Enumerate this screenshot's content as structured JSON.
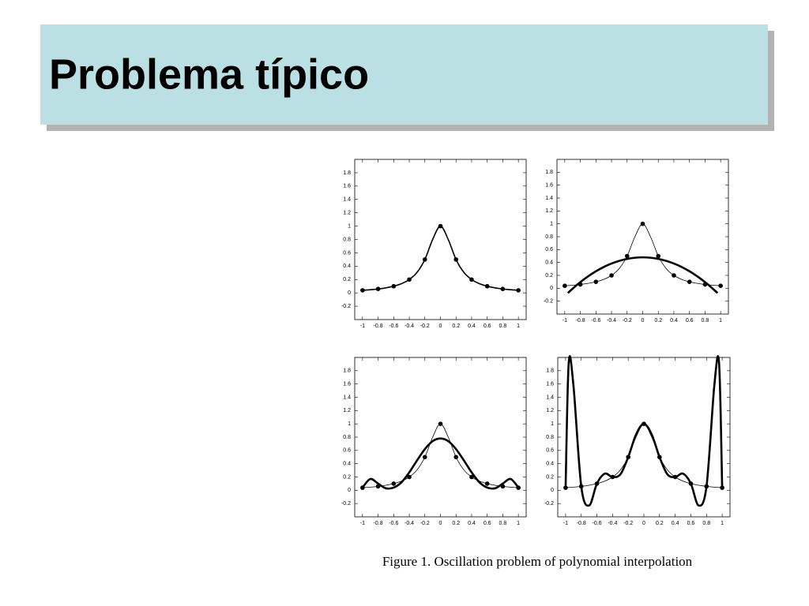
{
  "title": "Problema típico",
  "caption": "Figure 1. Oscillation problem of polynomial interpolation",
  "chart_data": [
    {
      "type": "line",
      "xlim": [
        -1.1,
        1.1
      ],
      "ylim": [
        -0.4,
        2
      ],
      "xticks": [
        -1,
        -0.8,
        -0.6,
        -0.4,
        -0.2,
        0,
        0.2,
        0.4,
        0.6,
        0.8,
        1
      ],
      "yticks": [
        -0.2,
        0,
        0.2,
        0.4,
        0.6,
        0.8,
        1,
        1.2,
        1.4,
        1.6,
        1.8
      ],
      "series": [
        {
          "color": "#000000",
          "linewidth": 1.6,
          "marker": false,
          "x": [
            -1,
            -0.9,
            -0.8,
            -0.7,
            -0.6,
            -0.5,
            -0.4,
            -0.3,
            -0.2,
            -0.1,
            0,
            0.1,
            0.2,
            0.3,
            0.4,
            0.5,
            0.6,
            0.7,
            0.8,
            0.9,
            1
          ],
          "values": [
            0.0385,
            0.0471,
            0.0588,
            0.0755,
            0.1,
            0.1379,
            0.2,
            0.3077,
            0.5,
            0.8,
            1,
            0.8,
            0.5,
            0.3077,
            0.2,
            0.1379,
            0.1,
            0.0755,
            0.0588,
            0.0471,
            0.0385
          ]
        },
        {
          "color": "#000000",
          "linewidth": 0,
          "marker": true,
          "x": [
            -1,
            -0.8,
            -0.6,
            -0.4,
            -0.2,
            0,
            0.2,
            0.4,
            0.6,
            0.8,
            1
          ],
          "values": [
            0.0385,
            0.0588,
            0.1,
            0.2,
            0.5,
            1,
            0.5,
            0.2,
            0.1,
            0.0588,
            0.0385
          ]
        }
      ]
    },
    {
      "type": "line",
      "xlim": [
        -1.1,
        1.1
      ],
      "ylim": [
        -0.4,
        2
      ],
      "xticks": [
        -1,
        -0.8,
        -0.6,
        -0.4,
        -0.2,
        0,
        0.2,
        0.4,
        0.6,
        0.8,
        1
      ],
      "yticks": [
        -0.2,
        0,
        0.2,
        0.4,
        0.6,
        0.8,
        1,
        1.2,
        1.4,
        1.6,
        1.8
      ],
      "series": [
        {
          "color": "#000000",
          "linewidth": 0.8,
          "marker": false,
          "x": [
            -1,
            -0.9,
            -0.8,
            -0.7,
            -0.6,
            -0.5,
            -0.4,
            -0.3,
            -0.2,
            -0.1,
            0,
            0.1,
            0.2,
            0.3,
            0.4,
            0.5,
            0.6,
            0.7,
            0.8,
            0.9,
            1
          ],
          "values": [
            0.0385,
            0.0471,
            0.0588,
            0.0755,
            0.1,
            0.1379,
            0.2,
            0.3077,
            0.5,
            0.8,
            1,
            0.8,
            0.5,
            0.3077,
            0.2,
            0.1379,
            0.1,
            0.0755,
            0.0588,
            0.0471,
            0.0385
          ]
        },
        {
          "color": "#000000",
          "linewidth": 2.6,
          "marker": false,
          "x": [
            -0.96,
            -0.8,
            -0.6,
            -0.4,
            -0.2,
            0,
            0.2,
            0.4,
            0.6,
            0.8,
            0.96
          ],
          "values": [
            -0.073,
            0.096,
            0.264,
            0.384,
            0.456,
            0.48,
            0.456,
            0.384,
            0.264,
            0.096,
            -0.073
          ]
        },
        {
          "color": "#000000",
          "linewidth": 0,
          "marker": true,
          "x": [
            -1,
            -0.8,
            -0.6,
            -0.4,
            -0.2,
            0,
            0.2,
            0.4,
            0.6,
            0.8,
            1
          ],
          "values": [
            0.0385,
            0.0588,
            0.1,
            0.2,
            0.5,
            1,
            0.5,
            0.2,
            0.1,
            0.0588,
            0.0385
          ]
        }
      ]
    },
    {
      "type": "line",
      "xlim": [
        -1.1,
        1.1
      ],
      "ylim": [
        -0.4,
        2
      ],
      "xticks": [
        -1,
        -0.8,
        -0.6,
        -0.4,
        -0.2,
        0,
        0.2,
        0.4,
        0.6,
        0.8,
        1
      ],
      "yticks": [
        -0.2,
        0,
        0.2,
        0.4,
        0.6,
        0.8,
        1,
        1.2,
        1.4,
        1.6,
        1.8
      ],
      "series": [
        {
          "color": "#000000",
          "linewidth": 0.8,
          "marker": false,
          "x": [
            -1,
            -0.9,
            -0.8,
            -0.7,
            -0.6,
            -0.5,
            -0.4,
            -0.3,
            -0.2,
            -0.1,
            0,
            0.1,
            0.2,
            0.3,
            0.4,
            0.5,
            0.6,
            0.7,
            0.8,
            0.9,
            1
          ],
          "values": [
            0.0385,
            0.0471,
            0.0588,
            0.0755,
            0.1,
            0.1379,
            0.2,
            0.3077,
            0.5,
            0.8,
            1,
            0.8,
            0.5,
            0.3077,
            0.2,
            0.1379,
            0.1,
            0.0755,
            0.0588,
            0.0471,
            0.0385
          ]
        },
        {
          "color": "#000000",
          "linewidth": 2.6,
          "marker": false,
          "x": [
            -1,
            -0.9,
            -0.8,
            -0.7,
            -0.6,
            -0.5,
            -0.4,
            -0.3,
            -0.2,
            -0.1,
            0,
            0.1,
            0.2,
            0.3,
            0.4,
            0.5,
            0.6,
            0.7,
            0.8,
            0.9,
            1
          ],
          "values": [
            0.04,
            0.17,
            0.1,
            0.03,
            0.04,
            0.12,
            0.27,
            0.45,
            0.62,
            0.74,
            0.78,
            0.74,
            0.62,
            0.45,
            0.27,
            0.12,
            0.04,
            0.03,
            0.1,
            0.17,
            0.04
          ]
        },
        {
          "color": "#000000",
          "linewidth": 0,
          "marker": true,
          "x": [
            -1,
            -0.8,
            -0.6,
            -0.4,
            -0.2,
            0,
            0.2,
            0.4,
            0.6,
            0.8,
            1
          ],
          "values": [
            0.0385,
            0.0588,
            0.1,
            0.2,
            0.5,
            1,
            0.5,
            0.2,
            0.1,
            0.0588,
            0.0385
          ]
        }
      ]
    },
    {
      "type": "line",
      "xlim": [
        -1.1,
        1.1
      ],
      "ylim": [
        -0.4,
        2
      ],
      "xticks": [
        -1,
        -0.8,
        -0.6,
        -0.4,
        -0.2,
        0,
        0.2,
        0.4,
        0.6,
        0.8,
        1
      ],
      "yticks": [
        -0.2,
        0,
        0.2,
        0.4,
        0.6,
        0.8,
        1,
        1.2,
        1.4,
        1.6,
        1.8
      ],
      "series": [
        {
          "color": "#000000",
          "linewidth": 0.8,
          "marker": false,
          "x": [
            -1,
            -0.9,
            -0.8,
            -0.7,
            -0.6,
            -0.5,
            -0.4,
            -0.3,
            -0.2,
            -0.1,
            0,
            0.1,
            0.2,
            0.3,
            0.4,
            0.5,
            0.6,
            0.7,
            0.8,
            0.9,
            1
          ],
          "values": [
            0.0385,
            0.0471,
            0.0588,
            0.0755,
            0.1,
            0.1379,
            0.2,
            0.3077,
            0.5,
            0.8,
            1,
            0.8,
            0.5,
            0.3077,
            0.2,
            0.1379,
            0.1,
            0.0755,
            0.0588,
            0.0471,
            0.0385
          ]
        },
        {
          "color": "#000000",
          "linewidth": 2.6,
          "marker": false,
          "x": [
            -1,
            -0.96,
            -0.9,
            -0.8,
            -0.7,
            -0.6,
            -0.5,
            -0.4,
            -0.3,
            -0.2,
            -0.1,
            0,
            0.1,
            0.2,
            0.3,
            0.4,
            0.5,
            0.6,
            0.7,
            0.8,
            0.9,
            0.96,
            1
          ],
          "values": [
            0.04,
            1.92,
            1.58,
            0.06,
            -0.23,
            0.1,
            0.25,
            0.2,
            0.24,
            0.5,
            0.84,
            1,
            0.84,
            0.5,
            0.24,
            0.2,
            0.25,
            0.1,
            -0.23,
            0.06,
            1.58,
            1.92,
            0.04
          ]
        },
        {
          "color": "#000000",
          "linewidth": 0,
          "marker": true,
          "x": [
            -1,
            -0.8,
            -0.6,
            -0.4,
            -0.2,
            0,
            0.2,
            0.4,
            0.6,
            0.8,
            1
          ],
          "values": [
            0.0385,
            0.0588,
            0.1,
            0.2,
            0.5,
            1,
            0.5,
            0.2,
            0.1,
            0.0588,
            0.0385
          ]
        }
      ]
    }
  ]
}
